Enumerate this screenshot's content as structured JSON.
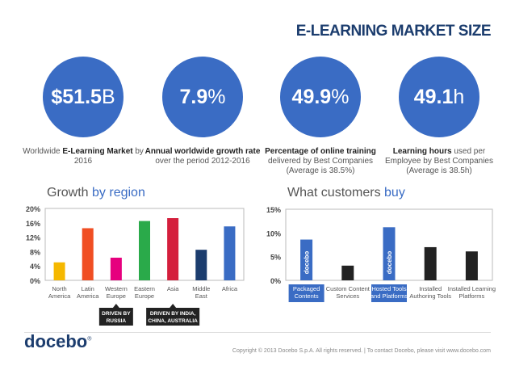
{
  "title": "E-LEARNING MARKET SIZE",
  "stats": [
    {
      "value_bold": "$51.5",
      "value_light": "B",
      "cap_pre": "Worldwide ",
      "cap_bold": "E-Learning Market",
      "cap_post": " by 2016",
      "cap_lines": []
    },
    {
      "value_bold": "7.9",
      "value_light": "%",
      "cap_pre": "",
      "cap_bold": "Annual worldwide growth rate",
      "cap_post": " over the period 2012-2016",
      "cap_lines": []
    },
    {
      "value_bold": "49.9",
      "value_light": "%",
      "cap_pre": "",
      "cap_bold": "Percentage of online training",
      "cap_post": " delivered by Best Companies",
      "cap_lines": [
        "(Average is 38.5%)"
      ]
    },
    {
      "value_bold": "49.1",
      "value_light": "h",
      "cap_pre": "",
      "cap_bold": "Learning hours",
      "cap_post": " used per Employee by Best Companies",
      "cap_lines": [
        "(Average is 38.5h)"
      ]
    }
  ],
  "growth_title": {
    "pre": "Growth ",
    "accent": "by region"
  },
  "customers_title": {
    "pre": "What customers ",
    "accent": "buy"
  },
  "chart_data": [
    {
      "type": "bar",
      "title": "Growth by region",
      "categories": [
        [
          "North",
          "America"
        ],
        [
          "Latin",
          "America"
        ],
        [
          "Western",
          "Europe"
        ],
        [
          "Eastern",
          "Europe"
        ],
        [
          "Asia"
        ],
        [
          "Middle",
          "East"
        ],
        [
          "Africa"
        ]
      ],
      "values": [
        5.0,
        14.5,
        6.3,
        16.5,
        17.3,
        8.5,
        15.0
      ],
      "colors": [
        "#f5b800",
        "#f04e23",
        "#e6007e",
        "#2aaa4a",
        "#d41f3c",
        "#1c3d6e",
        "#3a6cc4"
      ],
      "ylim": [
        0,
        20
      ],
      "yticks": [
        "0%",
        "4%",
        "8%",
        "12%",
        "16%",
        "20%"
      ],
      "ytick_values": [
        0,
        4,
        8,
        12,
        16,
        20
      ],
      "grid": false,
      "annotations": [
        {
          "text": [
            "DRIVEN BY",
            "RUSSIA"
          ],
          "category_index": 2
        },
        {
          "text": [
            "DRIVEN BY INDIA,",
            "CHINA, AUSTRALIA"
          ],
          "category_index": 4
        }
      ]
    },
    {
      "type": "bar",
      "title": "What customers buy",
      "categories": [
        [
          "Packaged",
          "Contents"
        ],
        [
          "Custom Content",
          "Services"
        ],
        [
          "Hosted Tools",
          "and Platforms"
        ],
        [
          "Installed",
          "Authoring Tools"
        ],
        [
          "Installed Learning",
          "Platforms"
        ]
      ],
      "values": [
        8.6,
        3.1,
        11.2,
        7.0,
        6.1
      ],
      "colors": [
        "#3a6cc4",
        "#222222",
        "#3a6cc4",
        "#222222",
        "#222222"
      ],
      "highlight": [
        true,
        false,
        true,
        false,
        false
      ],
      "bar_labels": [
        "docebo",
        "",
        "docebo",
        "",
        ""
      ],
      "ylim": [
        0,
        15
      ],
      "yticks": [
        "0%",
        "5%",
        "10%",
        "15%"
      ],
      "ytick_values": [
        0,
        5,
        10,
        15
      ],
      "grid": false
    }
  ],
  "logo": {
    "text": "docebo",
    "mark": "®"
  },
  "footer": "Copyright © 2013 Docebo S.p.A. All rights reserved.  |  To contact Docebo, please visit www.docebo.com"
}
